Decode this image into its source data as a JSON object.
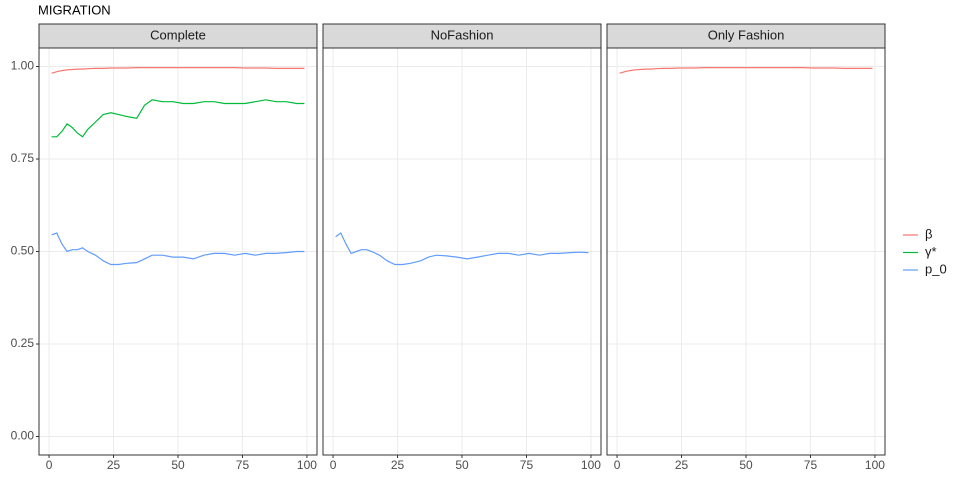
{
  "chart_data": {
    "type": "line",
    "title": "MIGRATION",
    "panels": [
      "Complete",
      "NoFashion",
      "Only Fashion"
    ],
    "x": [
      1,
      3,
      5,
      7,
      9,
      11,
      13,
      15,
      18,
      21,
      24,
      27,
      30,
      34,
      37,
      40,
      44,
      48,
      52,
      56,
      60,
      64,
      68,
      72,
      76,
      80,
      84,
      88,
      92,
      96,
      99
    ],
    "series": [
      {
        "name": "β",
        "color": "#F8766D",
        "values": [
          [
            0.982,
            0.986,
            0.989,
            0.991,
            0.992,
            0.993,
            0.993,
            0.994,
            0.995,
            0.995,
            0.996,
            0.996,
            0.996,
            0.997,
            0.997,
            0.997,
            0.997,
            0.997,
            0.997,
            0.997,
            0.997,
            0.997,
            0.997,
            0.997,
            0.996,
            0.996,
            0.996,
            0.995,
            0.995,
            0.995,
            0.995
          ],
          null,
          [
            0.982,
            0.986,
            0.989,
            0.991,
            0.992,
            0.993,
            0.993,
            0.994,
            0.995,
            0.995,
            0.996,
            0.996,
            0.996,
            0.997,
            0.997,
            0.997,
            0.997,
            0.997,
            0.997,
            0.997,
            0.997,
            0.997,
            0.997,
            0.997,
            0.996,
            0.996,
            0.996,
            0.995,
            0.995,
            0.995,
            0.995
          ]
        ]
      },
      {
        "name": "γ*",
        "color": "#00BA38",
        "values": [
          [
            0.81,
            0.81,
            0.825,
            0.845,
            0.835,
            0.82,
            0.81,
            0.83,
            0.85,
            0.87,
            0.875,
            0.87,
            0.865,
            0.86,
            0.895,
            0.91,
            0.905,
            0.905,
            0.9,
            0.9,
            0.905,
            0.905,
            0.9,
            0.9,
            0.9,
            0.905,
            0.91,
            0.905,
            0.905,
            0.9,
            0.9
          ],
          null,
          null
        ]
      },
      {
        "name": "p_0",
        "color": "#619CFF",
        "values": [
          [
            0.545,
            0.55,
            0.52,
            0.5,
            0.505,
            0.505,
            0.51,
            0.5,
            0.49,
            0.475,
            0.465,
            0.465,
            0.468,
            0.47,
            0.48,
            0.49,
            0.49,
            0.485,
            0.485,
            0.48,
            0.49,
            0.495,
            0.495,
            0.49,
            0.495,
            0.49,
            0.495,
            0.495,
            0.497,
            0.5,
            0.5
          ],
          [
            0.54,
            0.55,
            0.52,
            0.495,
            0.5,
            0.505,
            0.505,
            0.5,
            0.49,
            0.475,
            0.465,
            0.465,
            0.468,
            0.475,
            0.485,
            0.49,
            0.488,
            0.485,
            0.48,
            0.485,
            0.49,
            0.495,
            0.495,
            0.49,
            0.495,
            0.49,
            0.495,
            0.495,
            0.497,
            0.498,
            0.497
          ],
          null
        ]
      }
    ],
    "xlim": [
      -3.9,
      103.9
    ],
    "xticks": [
      0,
      25,
      50,
      75,
      100
    ],
    "ylim": [
      -0.05,
      1.05
    ],
    "yticks": [
      {
        "value": 0,
        "label": "0.00"
      },
      {
        "value": 0.25,
        "label": "0.25"
      },
      {
        "value": 0.5,
        "label": "0.50"
      },
      {
        "value": 0.75,
        "label": "0.75"
      },
      {
        "value": 1,
        "label": "1.00"
      }
    ],
    "grid": true
  }
}
